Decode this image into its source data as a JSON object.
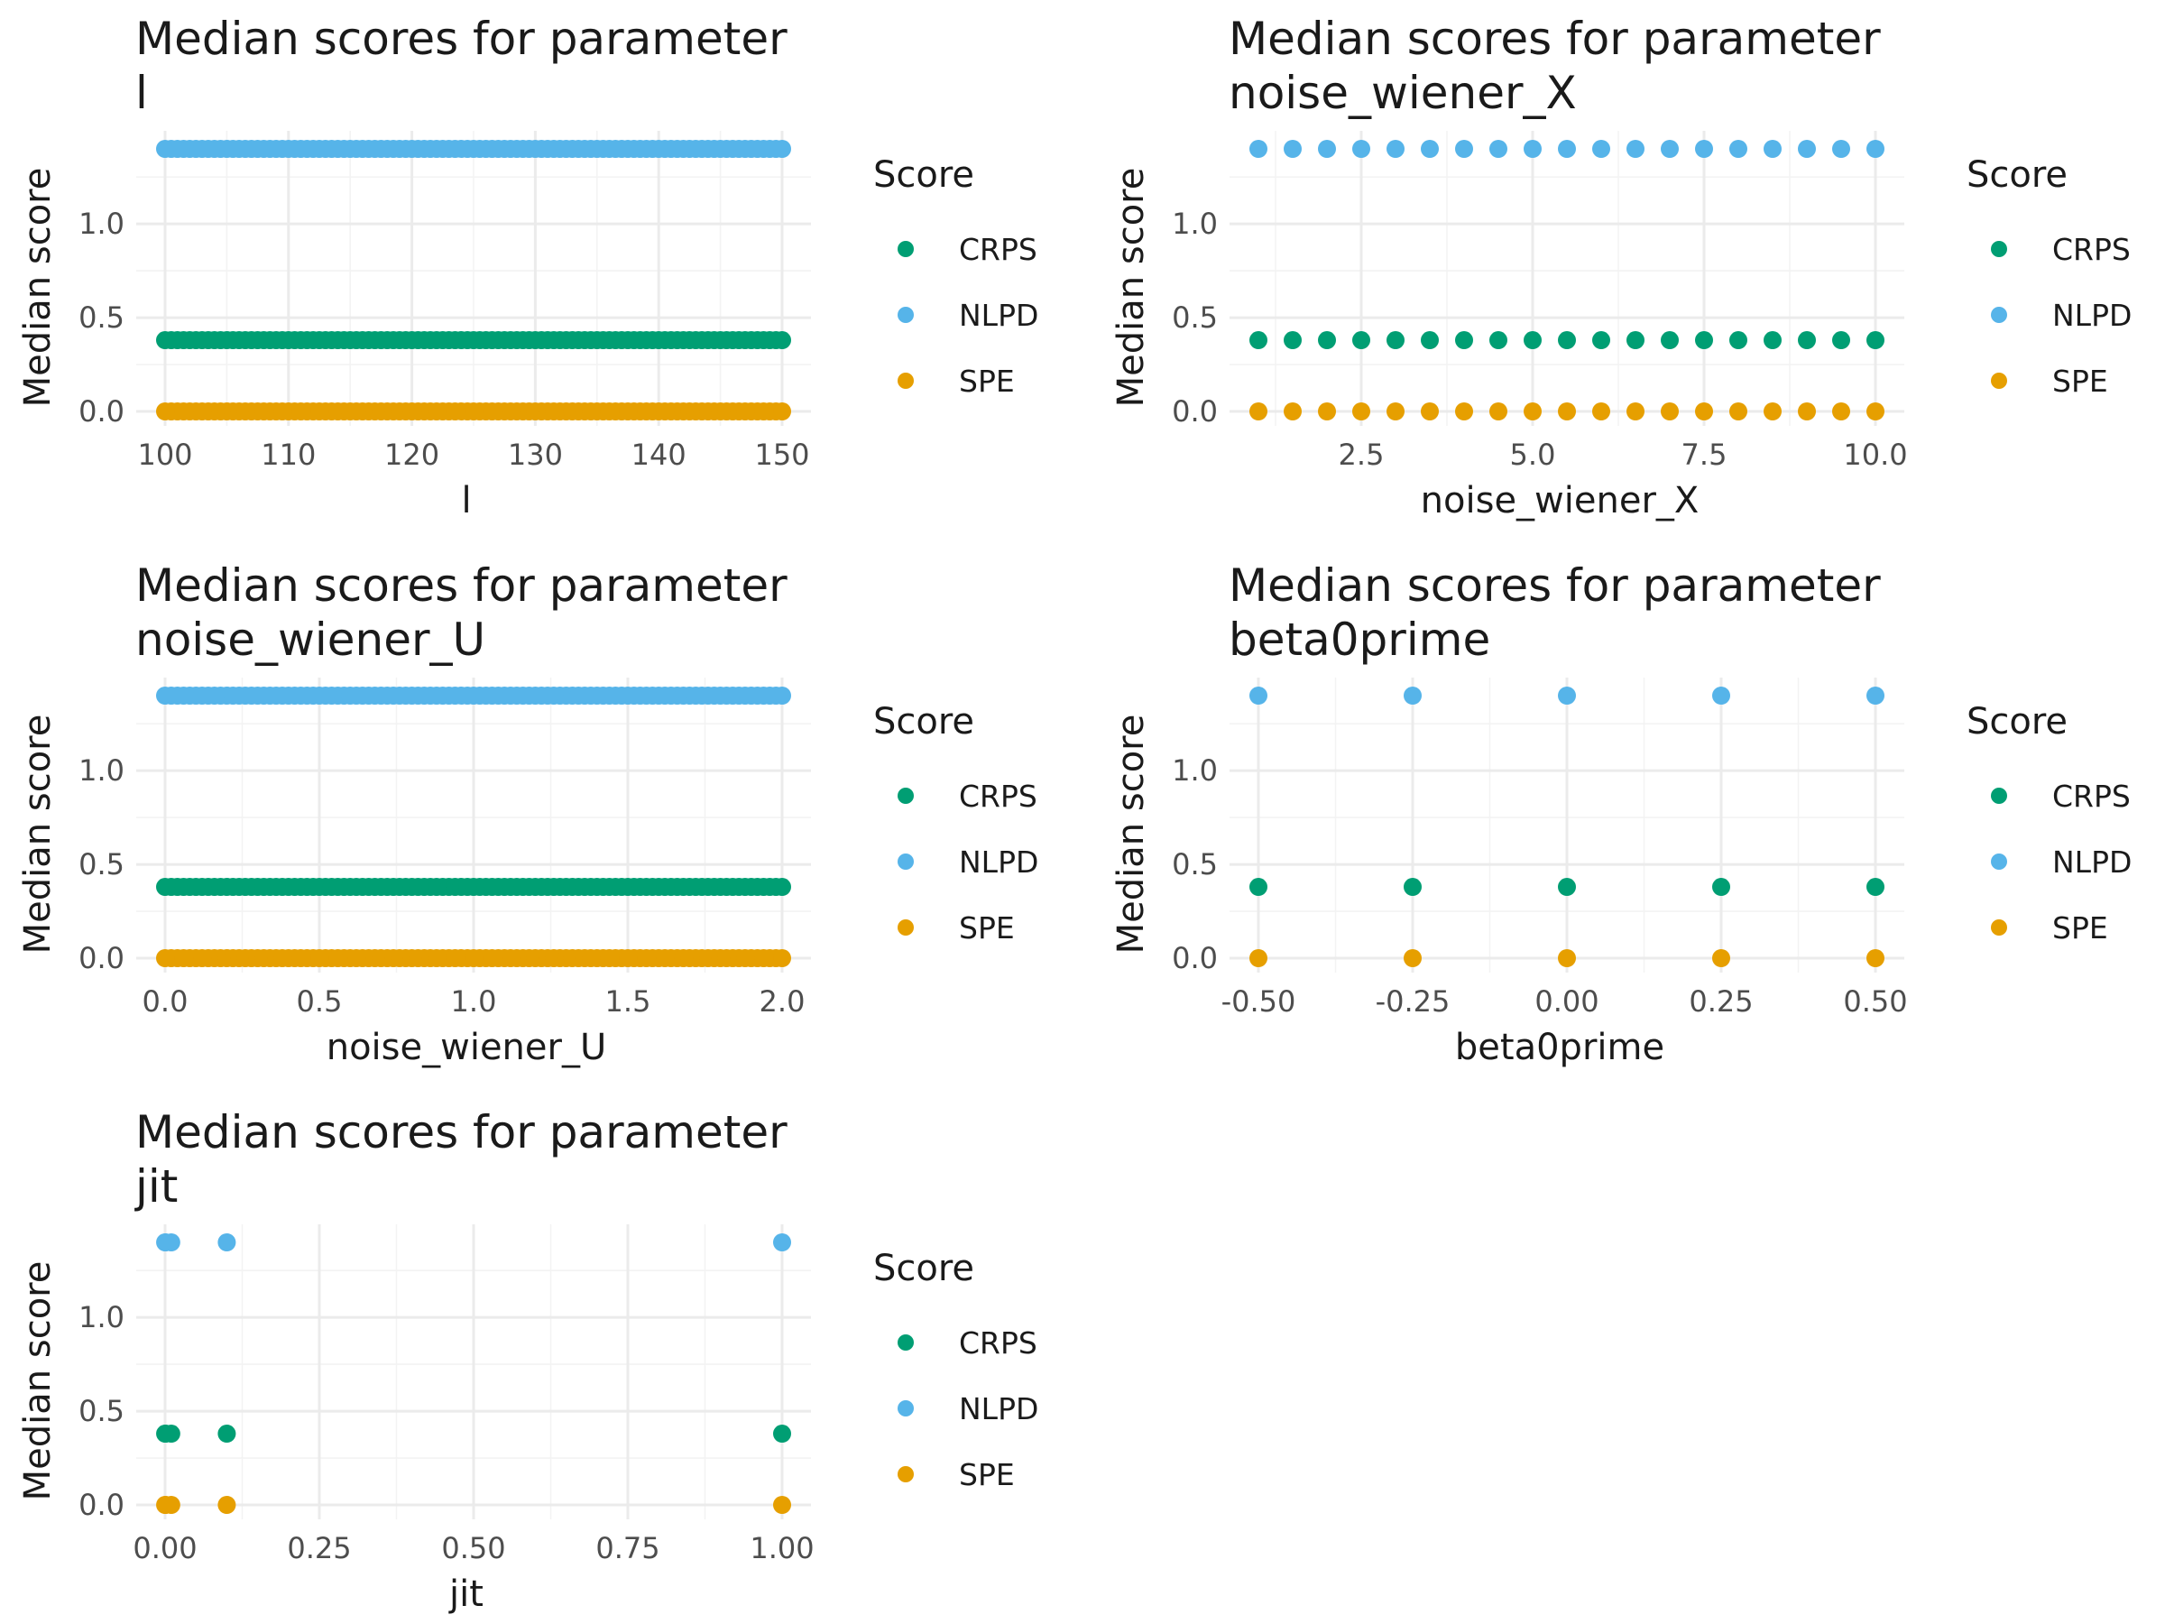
{
  "colors": {
    "CRPS": "#009E73",
    "NLPD": "#56B4E9",
    "SPE": "#E69F00"
  },
  "chart_data": [
    {
      "type": "scatter",
      "title": [
        "Median scores for parameter",
        " l"
      ],
      "xlabel": "l",
      "ylabel": "Median score",
      "xlim": [
        100,
        150
      ],
      "ylim": [
        0,
        1.4
      ],
      "xticks": [
        100,
        110,
        120,
        130,
        140,
        150
      ],
      "xtick_labels": [
        "100",
        "110",
        "120",
        "130",
        "140",
        "150"
      ],
      "yticks": [
        0,
        0.5,
        1.0
      ],
      "ytick_labels": [
        "0.0",
        "0.5",
        "1.0"
      ],
      "x_sampling": {
        "start": 100,
        "end": 150,
        "count": 101
      },
      "series": [
        {
          "name": "CRPS",
          "value": 0.38
        },
        {
          "name": "NLPD",
          "value": 1.4
        },
        {
          "name": "SPE",
          "value": 0.0
        }
      ],
      "legend": {
        "title": "Score",
        "placement": "right",
        "entries": [
          "CRPS",
          "NLPD",
          "SPE"
        ]
      }
    },
    {
      "type": "scatter",
      "title": [
        "Median scores for parameter",
        " noise_wiener_X"
      ],
      "xlabel": "noise_wiener_X",
      "ylabel": "Median score",
      "xlim": [
        1,
        10
      ],
      "ylim": [
        0,
        1.4
      ],
      "xticks": [
        2.5,
        5.0,
        7.5,
        10.0
      ],
      "xtick_labels": [
        "2.5",
        "5.0",
        "7.5",
        "10.0"
      ],
      "yticks": [
        0,
        0.5,
        1.0
      ],
      "ytick_labels": [
        "0.0",
        "0.5",
        "1.0"
      ],
      "x_sampling": {
        "start": 1,
        "end": 10,
        "count": 19
      },
      "series": [
        {
          "name": "CRPS",
          "value": 0.38
        },
        {
          "name": "NLPD",
          "value": 1.4
        },
        {
          "name": "SPE",
          "value": 0.0
        }
      ],
      "legend": {
        "title": "Score",
        "placement": "right",
        "entries": [
          "CRPS",
          "NLPD",
          "SPE"
        ]
      }
    },
    {
      "type": "scatter",
      "title": [
        "Median scores for parameter",
        " noise_wiener_U"
      ],
      "xlabel": "noise_wiener_U",
      "ylabel": "Median score",
      "xlim": [
        0,
        2
      ],
      "ylim": [
        0,
        1.4
      ],
      "xticks": [
        0,
        0.5,
        1.0,
        1.5,
        2.0
      ],
      "xtick_labels": [
        "0.0",
        "0.5",
        "1.0",
        "1.5",
        "2.0"
      ],
      "yticks": [
        0,
        0.5,
        1.0
      ],
      "ytick_labels": [
        "0.0",
        "0.5",
        "1.0"
      ],
      "x_sampling": {
        "start": 0,
        "end": 2,
        "count": 101
      },
      "series": [
        {
          "name": "CRPS",
          "value": 0.38
        },
        {
          "name": "NLPD",
          "value": 1.4
        },
        {
          "name": "SPE",
          "value": 0.0
        }
      ],
      "legend": {
        "title": "Score",
        "placement": "right",
        "entries": [
          "CRPS",
          "NLPD",
          "SPE"
        ]
      }
    },
    {
      "type": "scatter",
      "title": [
        "Median scores for parameter",
        " beta0prime"
      ],
      "xlabel": "beta0prime",
      "ylabel": "Median score",
      "xlim": [
        -0.5,
        0.5
      ],
      "ylim": [
        0,
        1.4
      ],
      "xticks": [
        -0.5,
        -0.25,
        0,
        0.25,
        0.5
      ],
      "xtick_labels": [
        "-0.50",
        "-0.25",
        "0.00",
        "0.25",
        "0.50"
      ],
      "yticks": [
        0,
        0.5,
        1.0
      ],
      "ytick_labels": [
        "0.0",
        "0.5",
        "1.0"
      ],
      "x": [
        -0.5,
        -0.25,
        0,
        0.25,
        0.5
      ],
      "series": [
        {
          "name": "CRPS",
          "value": 0.38
        },
        {
          "name": "NLPD",
          "value": 1.4
        },
        {
          "name": "SPE",
          "value": 0.0
        }
      ],
      "legend": {
        "title": "Score",
        "placement": "right",
        "entries": [
          "CRPS",
          "NLPD",
          "SPE"
        ]
      }
    },
    {
      "type": "scatter",
      "title": [
        "Median scores for parameter",
        " jit"
      ],
      "xlabel": "jit",
      "ylabel": "Median score",
      "xlim": [
        0,
        1
      ],
      "ylim": [
        0,
        1.4
      ],
      "xticks": [
        0,
        0.25,
        0.5,
        0.75,
        1.0
      ],
      "xtick_labels": [
        "0.00",
        "0.25",
        "0.50",
        "0.75",
        "1.00"
      ],
      "yticks": [
        0,
        0.5,
        1.0
      ],
      "ytick_labels": [
        "0.0",
        "0.5",
        "1.0"
      ],
      "x": [
        0.0001,
        0.001,
        0.01,
        0.1,
        1.0
      ],
      "series": [
        {
          "name": "CRPS",
          "value": 0.38
        },
        {
          "name": "NLPD",
          "value": 1.4
        },
        {
          "name": "SPE",
          "value": 0.0
        }
      ],
      "legend": {
        "title": "Score",
        "placement": "right",
        "entries": [
          "CRPS",
          "NLPD",
          "SPE"
        ]
      }
    }
  ]
}
